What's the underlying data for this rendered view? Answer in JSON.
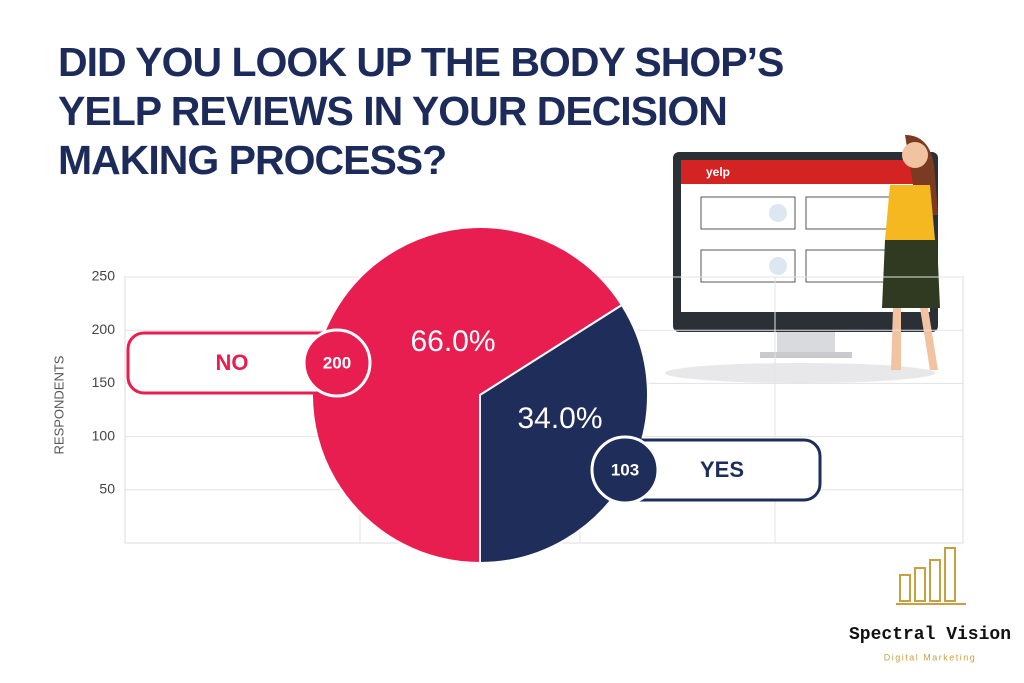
{
  "chart_data": {
    "type": "pie",
    "title": "DID YOU LOOK UP THE BODY SHOP’S YELP REVIEWS IN YOUR DECISION MAKING PROCESS?",
    "categories": [
      "NO",
      "YES"
    ],
    "values": [
      66.0,
      34.0
    ],
    "value_labels": [
      "66.0%",
      "34.0%"
    ],
    "counts": [
      200,
      103
    ],
    "colors": [
      "#e91e50",
      "#1f2d5a"
    ],
    "y_label": "RESPONDENTS",
    "ylim": [
      0,
      250
    ],
    "yticks": [
      50,
      100,
      150,
      200,
      250
    ],
    "grid": true
  },
  "illustration": {
    "brand": "yelp"
  },
  "logo": {
    "name": "Spectral Vision",
    "tagline": "Digital Marketing"
  }
}
